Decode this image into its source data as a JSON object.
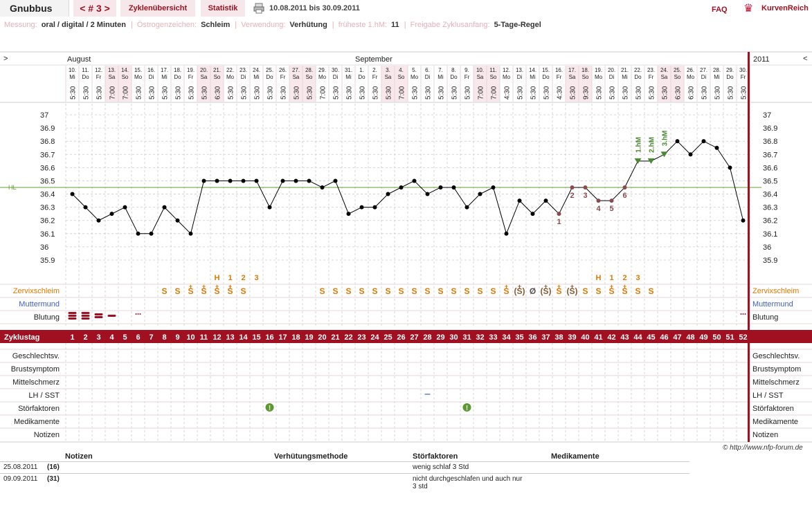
{
  "header": {
    "user": "Gnubbus",
    "cycle_nav": "< # 3 >",
    "tabs": [
      {
        "label": "Zyklenübersicht"
      },
      {
        "label": "Statistik"
      }
    ],
    "date_range": "10.08.2011 bis 30.09.2011",
    "faq_label": "FAQ",
    "brand": "KurvenReich",
    "print_icon": "printer-icon",
    "accent": "#a01020"
  },
  "info": [
    {
      "label": "Messung:",
      "value": "oral / digital / 2 Minuten"
    },
    {
      "label": "Östrogenzeichen:",
      "value": "Schleim"
    },
    {
      "label": "Verwendung:",
      "value": "Verhütung"
    },
    {
      "label": "früheste 1.hM:",
      "value": "11"
    },
    {
      "label": "Freigabe Zyklusanfang:",
      "value": "5-Tage-Regel"
    }
  ],
  "chart": {
    "left_arrow": ">",
    "right_arrow": "<",
    "year": "2011",
    "months": [
      {
        "label": "August",
        "col": 0
      },
      {
        "label": "September",
        "col": 22
      }
    ],
    "hl_label": "HL",
    "day_nums": [
      "10.",
      "11.",
      "12.",
      "13.",
      "14.",
      "15.",
      "16.",
      "17.",
      "18.",
      "19.",
      "20.",
      "21.",
      "22.",
      "23.",
      "24.",
      "25.",
      "26.",
      "27.",
      "28.",
      "29.",
      "30.",
      "31.",
      "1.",
      "2.",
      "3.",
      "4.",
      "5.",
      "6.",
      "7.",
      "8.",
      "9.",
      "10.",
      "11.",
      "12.",
      "13.",
      "14.",
      "15.",
      "16.",
      "17.",
      "18.",
      "19.",
      "20.",
      "21.",
      "22.",
      "23.",
      "24.",
      "25.",
      "26.",
      "27.",
      "28.",
      "29.",
      "30."
    ],
    "weekdays": [
      "Mi",
      "Do",
      "Fr",
      "Sa",
      "So",
      "Mo",
      "Di",
      "Mi",
      "Do",
      "Fr",
      "Sa",
      "So",
      "Mo",
      "Di",
      "Mi",
      "Do",
      "Fr",
      "Sa",
      "So",
      "Mo",
      "Di",
      "Mi",
      "Do",
      "Fr",
      "Sa",
      "So",
      "Mo",
      "Di",
      "Mi",
      "Do",
      "Fr",
      "Sa",
      "So",
      "Mo",
      "Di",
      "Mi",
      "Do",
      "Fr",
      "Sa",
      "So",
      "Mo",
      "Di",
      "Mi",
      "Do",
      "Fr",
      "Sa",
      "So",
      "Mo",
      "Di",
      "Mi",
      "Do",
      "Fr"
    ],
    "times": [
      "5:30",
      "5:30",
      "5:30",
      "7:00",
      "7:00",
      "5:30",
      "5:30",
      "5:30",
      "5:30",
      "5:30",
      "5:30",
      "6:30",
      "5:30",
      "5:30",
      "5:30",
      "5:30",
      "5:30",
      "5:30",
      "5:30",
      "7:00",
      "5:30",
      "5:30",
      "5:30",
      "5:30",
      "5:30",
      "7:00",
      "5:30",
      "5:30",
      "5:30",
      "5:30",
      "5:30",
      "7:00",
      "7:00",
      "4:30",
      "5:30",
      "5:30",
      "5:30",
      "4:30",
      "5:30",
      "9:30",
      "5:30",
      "5:30",
      "5:30",
      "5:30",
      "5:30",
      "5:30",
      "6:30",
      "6:30",
      "5:30",
      "5:30",
      "5:30",
      "5:30"
    ],
    "weekend_cols": [
      3,
      4,
      10,
      11,
      17,
      18,
      24,
      25,
      31,
      32,
      38,
      39,
      45,
      46
    ],
    "rows_top": [
      {
        "label": "Zervixschleim",
        "color": "#e07800"
      },
      {
        "label": "Muttermund",
        "color": "#4060c0"
      },
      {
        "label": "Blutung",
        "color": "#222"
      }
    ],
    "zyklustag_label": "Zyklustag",
    "rows_bottom": [
      {
        "label": "Geschlechtsv."
      },
      {
        "label": "Brustsymptom"
      },
      {
        "label": "Mittelschmerz"
      },
      {
        "label": "LH / SST"
      },
      {
        "label": "Störfaktoren"
      },
      {
        "label": "Medikamente"
      },
      {
        "label": "Notizen"
      }
    ],
    "mucus": [
      "",
      "",
      "",
      "",
      "",
      "",
      "",
      "S",
      "S",
      "S+",
      "S+",
      "S+",
      "S+",
      "S",
      "",
      "",
      "",
      "",
      "",
      "S",
      "S",
      "S",
      "S",
      "S",
      "S",
      "S",
      "S",
      "S",
      "S",
      "S",
      "S",
      "S",
      "S",
      "S+",
      "(S+)",
      "Ø",
      "(S+)",
      "S+",
      "(S+)",
      "S",
      "S",
      "S+",
      "S+",
      "S",
      "S",
      "",
      "",
      "",
      "",
      "",
      "",
      ""
    ],
    "mucus_labels": [
      {
        "col": 11,
        "text": "H"
      },
      {
        "col": 12,
        "text": "1"
      },
      {
        "col": 13,
        "text": "2"
      },
      {
        "col": 14,
        "text": "3"
      },
      {
        "col": 40,
        "text": "H"
      },
      {
        "col": 41,
        "text": "1"
      },
      {
        "col": 42,
        "text": "2"
      },
      {
        "col": 43,
        "text": "3"
      }
    ],
    "bleeding": [
      3,
      3,
      2,
      1,
      0,
      0.5,
      0,
      0,
      0,
      0,
      0,
      0,
      0,
      0,
      0,
      0,
      0,
      0,
      0,
      0,
      0,
      0,
      0,
      0,
      0,
      0,
      0,
      0,
      0,
      0,
      0,
      0,
      0,
      0,
      0,
      0,
      0,
      0,
      0,
      0,
      0,
      0,
      0,
      0,
      0,
      0,
      0,
      0,
      0,
      0,
      0,
      0.5
    ],
    "lh_marks": [
      {
        "col": 27
      }
    ],
    "stoer_marks": [
      {
        "col": 15
      },
      {
        "col": 30
      }
    ],
    "colors": {
      "accent": "#a01020",
      "weekend": "#f8e8ec",
      "hl_line": "#60a030",
      "temp_line": "#000",
      "marked_point": "#8a4a50",
      "hm_marker": "#4a8a30",
      "mucus": "#e07800"
    }
  },
  "chart_data": {
    "type": "line",
    "title": "",
    "xlabel": "Zyklustag",
    "ylabel": "",
    "ylim": [
      35.8,
      37.05
    ],
    "y_ticks": [
      "37",
      "36.9",
      "36.8",
      "36.7",
      "36.6",
      "36.5",
      "36.4",
      "36.3",
      "36.2",
      "36.1",
      "36",
      "35.9"
    ],
    "x": [
      1,
      2,
      3,
      4,
      5,
      6,
      7,
      8,
      9,
      10,
      11,
      12,
      13,
      14,
      15,
      16,
      17,
      18,
      19,
      20,
      21,
      22,
      23,
      24,
      25,
      26,
      27,
      28,
      29,
      30,
      31,
      32,
      33,
      34,
      35,
      36,
      37,
      38,
      39,
      40,
      41,
      42,
      43,
      44,
      45,
      46,
      47,
      48,
      49,
      50,
      51,
      52
    ],
    "values": [
      36.4,
      36.3,
      36.2,
      36.25,
      36.3,
      36.1,
      36.1,
      36.3,
      36.2,
      36.1,
      36.5,
      36.5,
      36.5,
      36.5,
      36.5,
      36.3,
      36.5,
      36.5,
      36.5,
      36.45,
      36.5,
      36.25,
      36.3,
      36.3,
      36.4,
      36.45,
      36.5,
      36.4,
      36.45,
      36.45,
      36.3,
      36.4,
      36.45,
      36.1,
      36.35,
      36.25,
      36.35,
      36.25,
      36.45,
      36.45,
      36.35,
      36.35,
      36.45,
      36.65,
      36.65,
      36.7,
      36.8,
      36.7,
      36.8,
      36.75,
      36.6,
      36.2
    ],
    "hl": 36.45,
    "count_labels": [
      {
        "day": 38,
        "text": "1"
      },
      {
        "day": 39,
        "text": "2"
      },
      {
        "day": 40,
        "text": "3"
      },
      {
        "day": 41,
        "text": "4"
      },
      {
        "day": 42,
        "text": "5"
      },
      {
        "day": 43,
        "text": "6"
      }
    ],
    "hm_labels": [
      {
        "day": 44,
        "text": "1.hM"
      },
      {
        "day": 45,
        "text": "2.hM"
      },
      {
        "day": 46,
        "text": "3.hM"
      }
    ]
  },
  "notes_table": {
    "copyright": "© http://www.nfp-forum.de",
    "headers": [
      "Notizen",
      "Verhütungsmethode",
      "Störfaktoren",
      "Medikamente"
    ],
    "rows": [
      {
        "date": "25.08.2011",
        "day": "(16)",
        "stoer": "wenig schlaf 3 Std"
      },
      {
        "date": "09.09.2011",
        "day": "(31)",
        "stoer": "nicht durchgeschlafen und auch nur 3 std"
      }
    ]
  }
}
